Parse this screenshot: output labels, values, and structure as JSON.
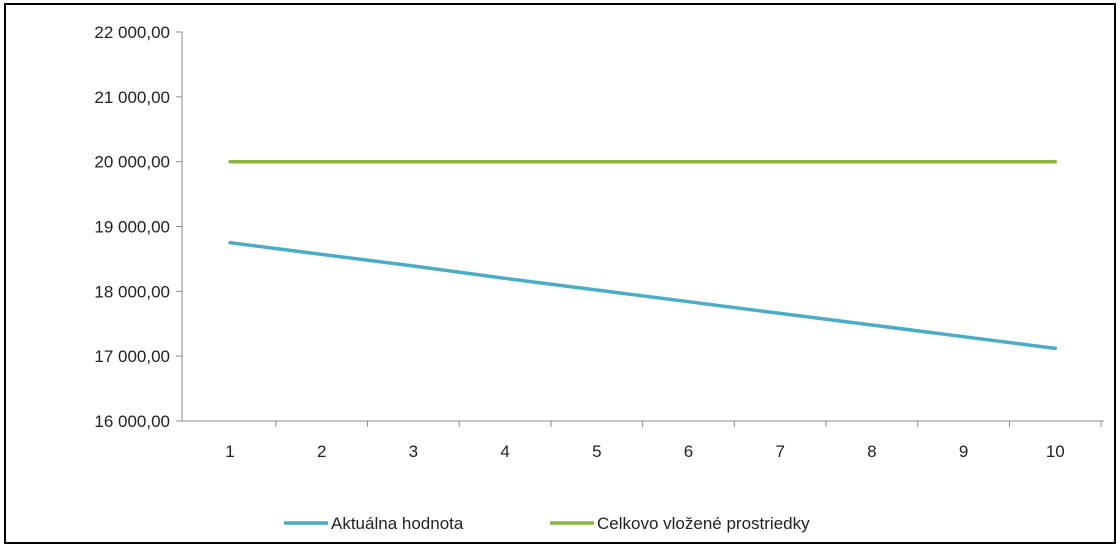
{
  "chart_data": {
    "type": "line",
    "title": "",
    "xlabel": "",
    "ylabel": "",
    "categories": [
      "1",
      "2",
      "3",
      "4",
      "5",
      "6",
      "7",
      "8",
      "9",
      "10"
    ],
    "ylim": [
      16000,
      22000
    ],
    "y_ticks": [
      16000,
      17000,
      18000,
      19000,
      20000,
      21000,
      22000
    ],
    "y_tick_labels": [
      "16 000,00",
      "17 000,00",
      "18 000,00",
      "19 000,00",
      "20 000,00",
      "21 000,00",
      "22 000,00"
    ],
    "grid": false,
    "legend_position": "bottom",
    "series": [
      {
        "name": "Aktuálna hodnota",
        "color": "#4BACC6",
        "values": [
          18750,
          18570,
          18390,
          18200,
          18020,
          17840,
          17660,
          17480,
          17300,
          17120
        ]
      },
      {
        "name": "Celkovo vložené prostriedky",
        "color": "#8DB53C",
        "values": [
          20000,
          20000,
          20000,
          20000,
          20000,
          20000,
          20000,
          20000,
          20000,
          20000
        ]
      }
    ]
  }
}
